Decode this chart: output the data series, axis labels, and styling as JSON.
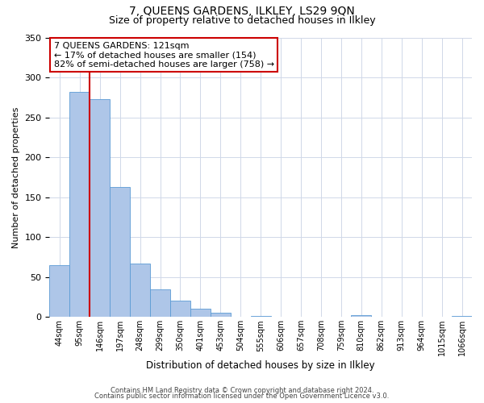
{
  "title": "7, QUEENS GARDENS, ILKLEY, LS29 9QN",
  "subtitle": "Size of property relative to detached houses in Ilkley",
  "xlabel": "Distribution of detached houses by size in Ilkley",
  "ylabel": "Number of detached properties",
  "bin_labels": [
    "44sqm",
    "95sqm",
    "146sqm",
    "197sqm",
    "248sqm",
    "299sqm",
    "350sqm",
    "401sqm",
    "453sqm",
    "504sqm",
    "555sqm",
    "606sqm",
    "657sqm",
    "708sqm",
    "759sqm",
    "810sqm",
    "862sqm",
    "913sqm",
    "964sqm",
    "1015sqm",
    "1066sqm"
  ],
  "bar_heights": [
    65,
    282,
    273,
    163,
    67,
    35,
    20,
    10,
    5,
    0,
    1,
    0,
    0,
    0,
    0,
    2,
    0,
    0,
    0,
    0,
    1
  ],
  "bar_color": "#aec6e8",
  "bar_edge_color": "#5b9bd5",
  "ylim": [
    0,
    350
  ],
  "yticks": [
    0,
    50,
    100,
    150,
    200,
    250,
    300,
    350
  ],
  "vline_color": "#cc0000",
  "annotation_title": "7 QUEENS GARDENS: 121sqm",
  "annotation_line1": "← 17% of detached houses are smaller (154)",
  "annotation_line2": "82% of semi-detached houses are larger (758) →",
  "annotation_box_color": "#ffffff",
  "annotation_box_edge": "#cc0000",
  "footer1": "Contains HM Land Registry data © Crown copyright and database right 2024.",
  "footer2": "Contains public sector information licensed under the Open Government Licence v3.0.",
  "bg_color": "#ffffff",
  "grid_color": "#d0d8e8",
  "title_fontsize": 10,
  "subtitle_fontsize": 9
}
